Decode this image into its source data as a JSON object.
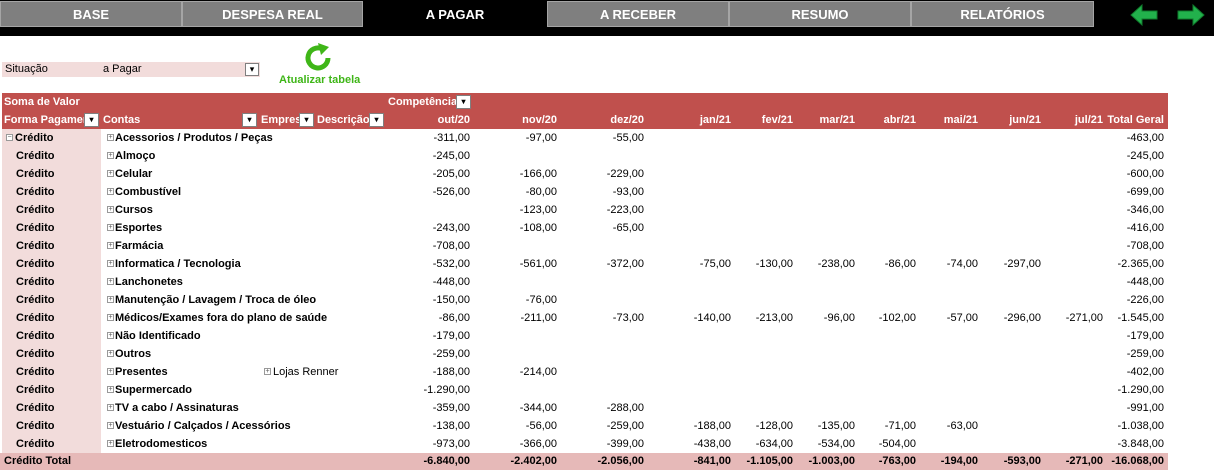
{
  "nav": {
    "tabs": [
      "BASE",
      "DESPESA REAL",
      "A PAGAR",
      "A RECEBER",
      "RESUMO",
      "RELATÓRIOS"
    ],
    "active": "A PAGAR",
    "colors": {
      "bar": "#000000",
      "tab": "#7f7f7f",
      "arrow": "#22b14c"
    },
    "icons": [
      "arrow-left-icon",
      "arrow-right-icon"
    ]
  },
  "filter": {
    "label": "Situação",
    "value": "a Pagar",
    "icon": "filter-dropdown-icon"
  },
  "refresh": {
    "label": "Atualizar tabela",
    "icon": "refresh-icon"
  },
  "pivot": {
    "value_label": "Soma de Valor",
    "column_field": "Competência",
    "row_headers": [
      "Forma Pagamer",
      "Contas",
      "Empres",
      "Descrição"
    ],
    "months": [
      "out/20",
      "nov/20",
      "dez/20",
      "jan/21",
      "fev/21",
      "mar/21",
      "abr/21",
      "mai/21",
      "jun/21",
      "jul/21"
    ],
    "total_header": "Total Geral",
    "header_color": "#c0504d",
    "rows": [
      {
        "fp": "Crédito",
        "conta": "Acessorios / Produtos / Peças",
        "vals": [
          "-311,00",
          "-97,00",
          "-55,00",
          "",
          "",
          "",
          "",
          "",
          "",
          ""
        ],
        "total": "-463,00"
      },
      {
        "fp": "Crédito",
        "conta": "Almoço",
        "vals": [
          "-245,00",
          "",
          "",
          "",
          "",
          "",
          "",
          "",
          "",
          ""
        ],
        "total": "-245,00"
      },
      {
        "fp": "Crédito",
        "conta": "Celular",
        "vals": [
          "-205,00",
          "-166,00",
          "-229,00",
          "",
          "",
          "",
          "",
          "",
          "",
          ""
        ],
        "total": "-600,00"
      },
      {
        "fp": "Crédito",
        "conta": "Combustível",
        "vals": [
          "-526,00",
          "-80,00",
          "-93,00",
          "",
          "",
          "",
          "",
          "",
          "",
          ""
        ],
        "total": "-699,00"
      },
      {
        "fp": "Crédito",
        "conta": "Cursos",
        "vals": [
          "",
          "-123,00",
          "-223,00",
          "",
          "",
          "",
          "",
          "",
          "",
          ""
        ],
        "total": "-346,00"
      },
      {
        "fp": "Crédito",
        "conta": "Esportes",
        "vals": [
          "-243,00",
          "-108,00",
          "-65,00",
          "",
          "",
          "",
          "",
          "",
          "",
          ""
        ],
        "total": "-416,00"
      },
      {
        "fp": "Crédito",
        "conta": "Farmácia",
        "vals": [
          "-708,00",
          "",
          "",
          "",
          "",
          "",
          "",
          "",
          "",
          ""
        ],
        "total": "-708,00"
      },
      {
        "fp": "Crédito",
        "conta": "Informatica / Tecnologia",
        "vals": [
          "-532,00",
          "-561,00",
          "-372,00",
          "-75,00",
          "-130,00",
          "-238,00",
          "-86,00",
          "-74,00",
          "-297,00",
          ""
        ],
        "total": "-2.365,00"
      },
      {
        "fp": "Crédito",
        "conta": "Lanchonetes",
        "vals": [
          "-448,00",
          "",
          "",
          "",
          "",
          "",
          "",
          "",
          "",
          ""
        ],
        "total": "-448,00"
      },
      {
        "fp": "Crédito",
        "conta": "Manutenção / Lavagem / Troca de óleo",
        "vals": [
          "-150,00",
          "-76,00",
          "",
          "",
          "",
          "",
          "",
          "",
          "",
          ""
        ],
        "total": "-226,00"
      },
      {
        "fp": "Crédito",
        "conta": "Médicos/Exames fora do plano de saúde",
        "vals": [
          "-86,00",
          "-211,00",
          "-73,00",
          "-140,00",
          "-213,00",
          "-96,00",
          "-102,00",
          "-57,00",
          "-296,00",
          "-271,00"
        ],
        "total": "-1.545,00"
      },
      {
        "fp": "Crédito",
        "conta": "Não Identificado",
        "vals": [
          "-179,00",
          "",
          "",
          "",
          "",
          "",
          "",
          "",
          "",
          ""
        ],
        "total": "-179,00"
      },
      {
        "fp": "Crédito",
        "conta": "Outros",
        "vals": [
          "-259,00",
          "",
          "",
          "",
          "",
          "",
          "",
          "",
          "",
          ""
        ],
        "total": "-259,00"
      },
      {
        "fp": "Crédito",
        "conta": "Presentes",
        "extra": "Lojas Renner",
        "vals": [
          "-188,00",
          "-214,00",
          "",
          "",
          "",
          "",
          "",
          "",
          "",
          ""
        ],
        "total": "-402,00"
      },
      {
        "fp": "Crédito",
        "conta": "Supermercado",
        "vals": [
          "-1.290,00",
          "",
          "",
          "",
          "",
          "",
          "",
          "",
          "",
          ""
        ],
        "total": "-1.290,00"
      },
      {
        "fp": "Crédito",
        "conta": "TV a cabo / Assinaturas",
        "vals": [
          "-359,00",
          "-344,00",
          "-288,00",
          "",
          "",
          "",
          "",
          "",
          "",
          ""
        ],
        "total": "-991,00"
      },
      {
        "fp": "Crédito",
        "conta": "Vestuário / Calçados / Acessórios",
        "vals": [
          "-138,00",
          "-56,00",
          "-259,00",
          "-188,00",
          "-128,00",
          "-135,00",
          "-71,00",
          "-63,00",
          "",
          ""
        ],
        "total": "-1.038,00"
      },
      {
        "fp": "Crédito",
        "conta": "Eletrodomesticos",
        "vals": [
          "-973,00",
          "-366,00",
          "-399,00",
          "-438,00",
          "-634,00",
          "-534,00",
          "-504,00",
          "",
          "",
          ""
        ],
        "total": "-3.848,00"
      }
    ],
    "total_row": {
      "label": "Crédito Total",
      "vals": [
        "-6.840,00",
        "-2.402,00",
        "-2.056,00",
        "-841,00",
        "-1.105,00",
        "-1.003,00",
        "-763,00",
        "-194,00",
        "-593,00",
        "-271,00"
      ],
      "total": "-16.068,00"
    }
  }
}
